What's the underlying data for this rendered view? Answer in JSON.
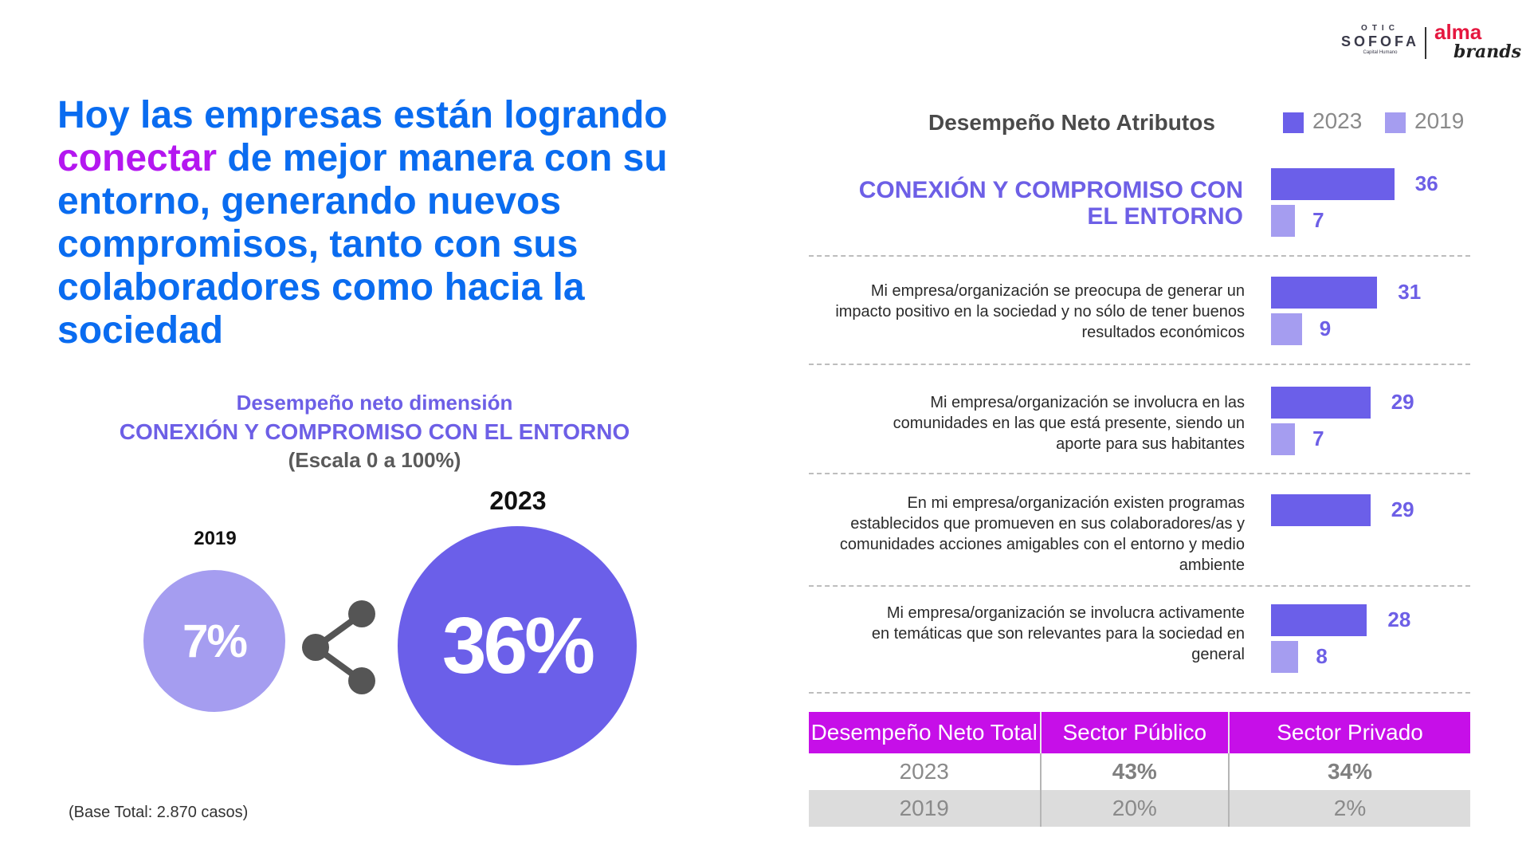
{
  "logos": {
    "otic_top": "OTIC",
    "otic_main": "SOFOFA",
    "otic_sub": "Capital Humano",
    "alma_top": "alma",
    "alma_bottom": "brands"
  },
  "headline": {
    "part1": "Hoy las empresas están logrando ",
    "accent": "conectar",
    "part2": " de mejor manera con su entorno, generando nuevos compromisos, tanto con sus colaboradores como hacia la sociedad"
  },
  "dimension": {
    "line1": "Desempeño neto dimensión",
    "line2": "CONEXIÓN Y COMPROMISO CON EL ENTORNO",
    "line3": "(Escala 0 a 100%)"
  },
  "circles": {
    "year_2019": "2019",
    "value_2019": "7%",
    "year_2023": "2023",
    "value_2023": "36%",
    "color_2019": "#a59df0",
    "color_2023": "#6b5fe9"
  },
  "base_note": "(Base Total: 2.870 casos)",
  "chart_data": {
    "type": "bar",
    "title": "Desempeño Neto Atributos",
    "orientation": "horizontal",
    "legend": {
      "position": "top-right",
      "entries": [
        "2023",
        "2019"
      ]
    },
    "categories": [
      "CONEXIÓN Y COMPROMISO CON EL ENTORNO",
      "Mi empresa/organización se preocupa de generar un impacto positivo en la sociedad y no sólo de tener buenos resultados económicos",
      "Mi empresa/organización  se involucra en las comunidades en las que está presente, siendo un aporte para sus habitantes",
      "En mi empresa/organización existen programas establecidos que promueven en sus colaboradores/as y comunidades acciones amigables con el entorno y medio ambiente",
      "Mi empresa/organización  se involucra activamente en temáticas que son relevantes para la sociedad en general"
    ],
    "series": [
      {
        "name": "2023",
        "color": "#6b5fe9",
        "values": [
          36,
          31,
          29,
          29,
          28
        ]
      },
      {
        "name": "2019",
        "color": "#a59df0",
        "values": [
          7,
          9,
          7,
          null,
          8
        ]
      }
    ],
    "xlim": [
      0,
      40
    ],
    "grid": false
  },
  "table": {
    "headers": [
      "Desempeño Neto Total",
      "Sector Público",
      "Sector Privado"
    ],
    "rows": [
      [
        "2023",
        "43%",
        "34%"
      ],
      [
        "2019",
        "20%",
        "2%"
      ]
    ]
  }
}
